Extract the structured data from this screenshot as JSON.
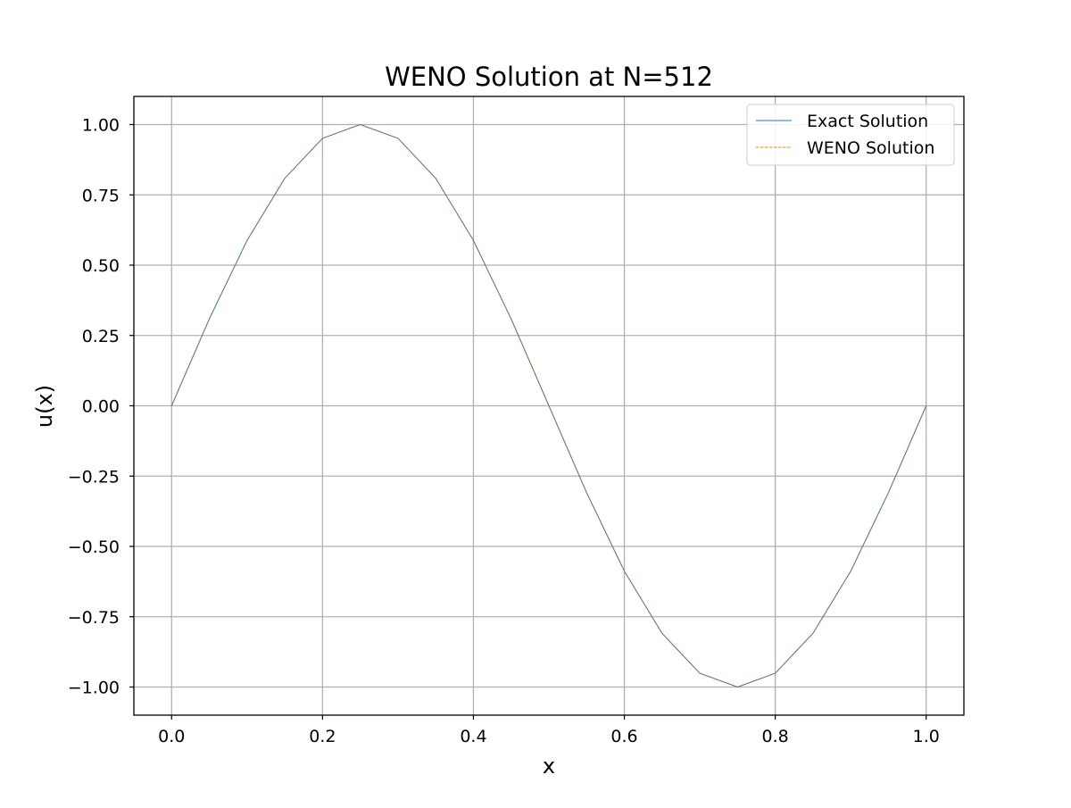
{
  "chart_data": {
    "type": "line",
    "title": "WENO Solution at N=512",
    "xlabel": "x",
    "ylabel": "u(x)",
    "xlim": [
      -0.05,
      1.05
    ],
    "ylim": [
      -1.1,
      1.1
    ],
    "xticks": [
      0.0,
      0.2,
      0.4,
      0.6,
      0.8,
      1.0
    ],
    "xtick_labels": [
      "0.0",
      "0.2",
      "0.4",
      "0.6",
      "0.8",
      "1.0"
    ],
    "yticks": [
      -1.0,
      -0.75,
      -0.5,
      -0.25,
      0.0,
      0.25,
      0.5,
      0.75,
      1.0
    ],
    "ytick_labels": [
      "−1.00",
      "−0.75",
      "−0.50",
      "−0.25",
      "0.00",
      "0.25",
      "0.50",
      "0.75",
      "1.00"
    ],
    "grid": true,
    "legend_position": "top-right",
    "series": [
      {
        "name": "Exact Solution",
        "color": "#1f77b4",
        "style": "solid",
        "x": [
          0.0,
          0.05,
          0.1,
          0.15,
          0.2,
          0.25,
          0.3,
          0.35,
          0.4,
          0.45,
          0.5,
          0.55,
          0.6,
          0.65,
          0.7,
          0.75,
          0.8,
          0.85,
          0.9,
          0.95,
          1.0
        ],
        "y": [
          0.0,
          0.309,
          0.588,
          0.809,
          0.951,
          1.0,
          0.951,
          0.809,
          0.588,
          0.309,
          0.0,
          -0.309,
          -0.588,
          -0.809,
          -0.951,
          -1.0,
          -0.951,
          -0.809,
          -0.588,
          -0.309,
          0.0
        ]
      },
      {
        "name": "WENO Solution",
        "color": "#ff7f0e",
        "style": "dashed",
        "x": [
          0.0,
          0.05,
          0.1,
          0.15,
          0.2,
          0.25,
          0.3,
          0.35,
          0.4,
          0.45,
          0.5,
          0.55,
          0.6,
          0.65,
          0.7,
          0.75,
          0.8,
          0.85,
          0.9,
          0.95,
          1.0
        ],
        "y": [
          0.0,
          0.309,
          0.588,
          0.809,
          0.951,
          1.0,
          0.951,
          0.809,
          0.588,
          0.309,
          0.0,
          -0.309,
          -0.588,
          -0.809,
          -0.951,
          -1.0,
          -0.951,
          -0.809,
          -0.588,
          -0.309,
          0.0
        ]
      }
    ],
    "curve_color": "#9c7552",
    "frame_color": "#000000",
    "grid_color": "#b0b0b0"
  }
}
